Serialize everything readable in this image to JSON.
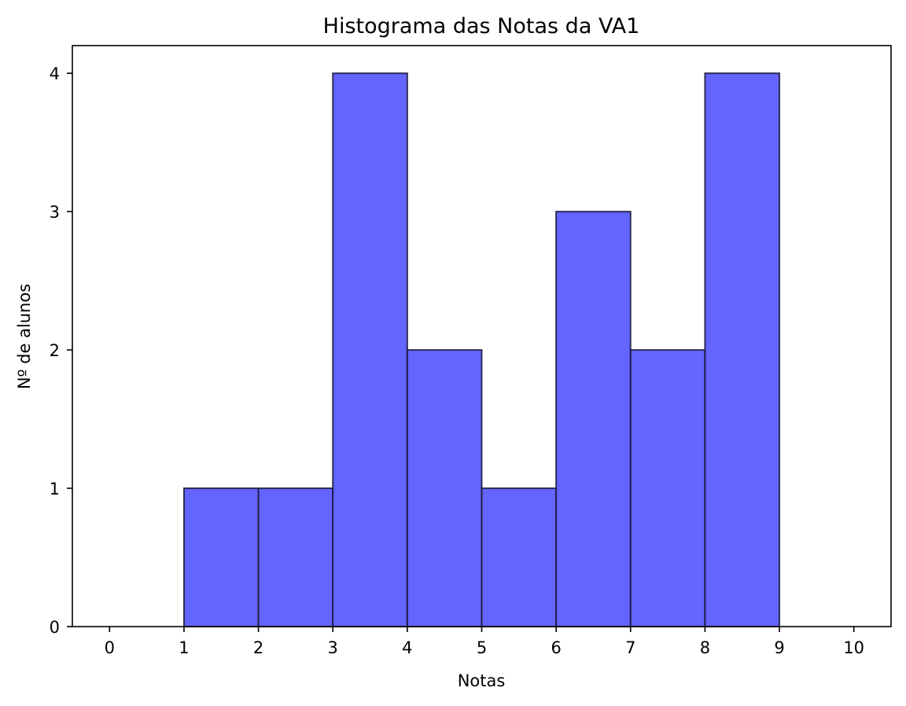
{
  "chart_data": {
    "type": "bar",
    "title": "Histograma das Notas da VA1",
    "xlabel": "Notas",
    "ylabel": "Nº de alunos",
    "bins": [
      [
        1,
        2
      ],
      [
        2,
        3
      ],
      [
        3,
        4
      ],
      [
        4,
        5
      ],
      [
        5,
        6
      ],
      [
        6,
        7
      ],
      [
        7,
        8
      ],
      [
        8,
        9
      ]
    ],
    "values": [
      1,
      1,
      4,
      2,
      1,
      3,
      2,
      4
    ],
    "xlim": [
      -0.5,
      10.5
    ],
    "ylim": [
      0,
      4.2
    ],
    "xticks": [
      0,
      1,
      2,
      3,
      4,
      5,
      6,
      7,
      8,
      9,
      10
    ],
    "yticks": [
      0,
      1,
      2,
      3,
      4
    ],
    "grid": false,
    "bar_color": "#6464ff",
    "edge_color": "#1a1a3a"
  }
}
